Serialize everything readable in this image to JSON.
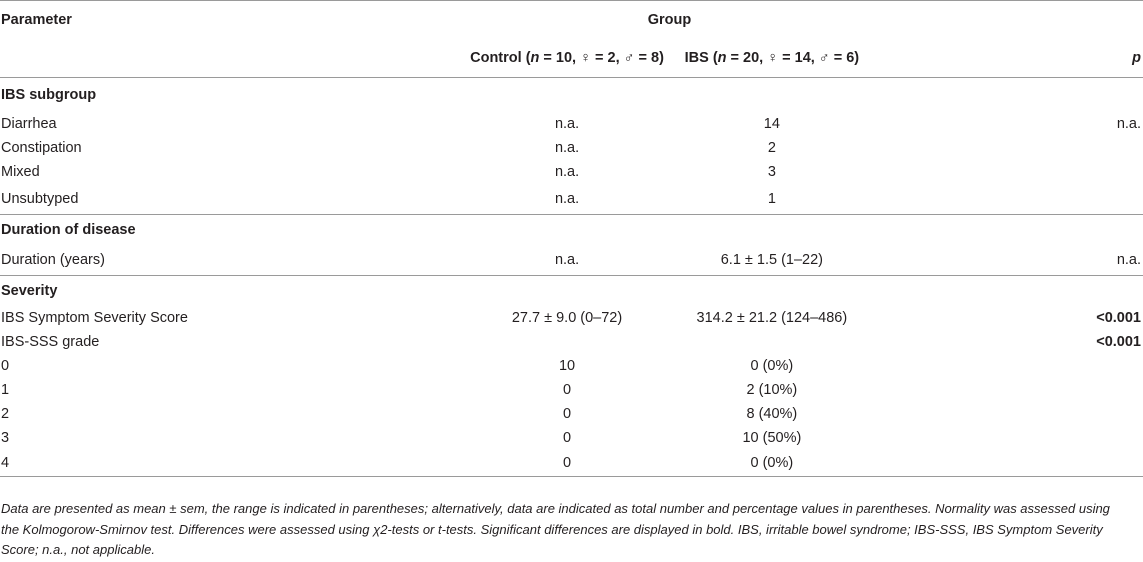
{
  "header": {
    "parameter": "Parameter",
    "group": "Group",
    "control_pre": "Control (",
    "control_n": "n",
    "control_post": " = 10, ♀ = 2, ♂ = 8)",
    "ibs_pre": "IBS (",
    "ibs_n": "n",
    "ibs_post": " = 20, ♀ = 14, ♂ = 6)",
    "p": "p"
  },
  "sections": {
    "ibs_subgroup": "IBS subgroup",
    "duration": "Duration of disease",
    "severity": "Severity"
  },
  "rows": {
    "diarrhea": {
      "label": "Diarrhea",
      "control": "n.a.",
      "ibs": "14",
      "p": "n.a."
    },
    "constipation": {
      "label": "Constipation",
      "control": "n.a.",
      "ibs": "2",
      "p": ""
    },
    "mixed": {
      "label": "Mixed",
      "control": "n.a.",
      "ibs": "3",
      "p": ""
    },
    "unsubtyped": {
      "label": "Unsubtyped",
      "control": "n.a.",
      "ibs": "1",
      "p": ""
    },
    "duration_years": {
      "label": "Duration (years)",
      "control": "n.a.",
      "ibs": "6.1 ± 1.5 (1–22)",
      "p": "n.a."
    },
    "ibs_sss": {
      "label": "IBS Symptom Severity Score",
      "control": "27.7 ± 9.0 (0–72)",
      "ibs": "314.2 ± 21.2 (124–486)",
      "p": "<0.001"
    },
    "ibs_sss_grade": {
      "label": "IBS-SSS grade",
      "control": "",
      "ibs": "",
      "p": "<0.001"
    },
    "grade0": {
      "label": "0",
      "control": "10",
      "ibs": "0 (0%)",
      "p": ""
    },
    "grade1": {
      "label": "1",
      "control": "0",
      "ibs": "2 (10%)",
      "p": ""
    },
    "grade2": {
      "label": "2",
      "control": "0",
      "ibs": "8 (40%)",
      "p": ""
    },
    "grade3": {
      "label": "3",
      "control": "0",
      "ibs": "10 (50%)",
      "p": ""
    },
    "grade4": {
      "label": "4",
      "control": "0",
      "ibs": "0 (0%)",
      "p": ""
    }
  },
  "footnote": "Data are presented as mean ± sem, the range is indicated in parentheses; alternatively, data are indicated as total number and percentage values in parentheses. Normality was assessed using the Kolmogorow-Smirnov test. Differences were assessed using χ2-tests or t-tests. Significant differences are displayed in bold. IBS, irritable bowel syndrome; IBS-SSS, IBS Symptom Severity Score; n.a., not applicable."
}
